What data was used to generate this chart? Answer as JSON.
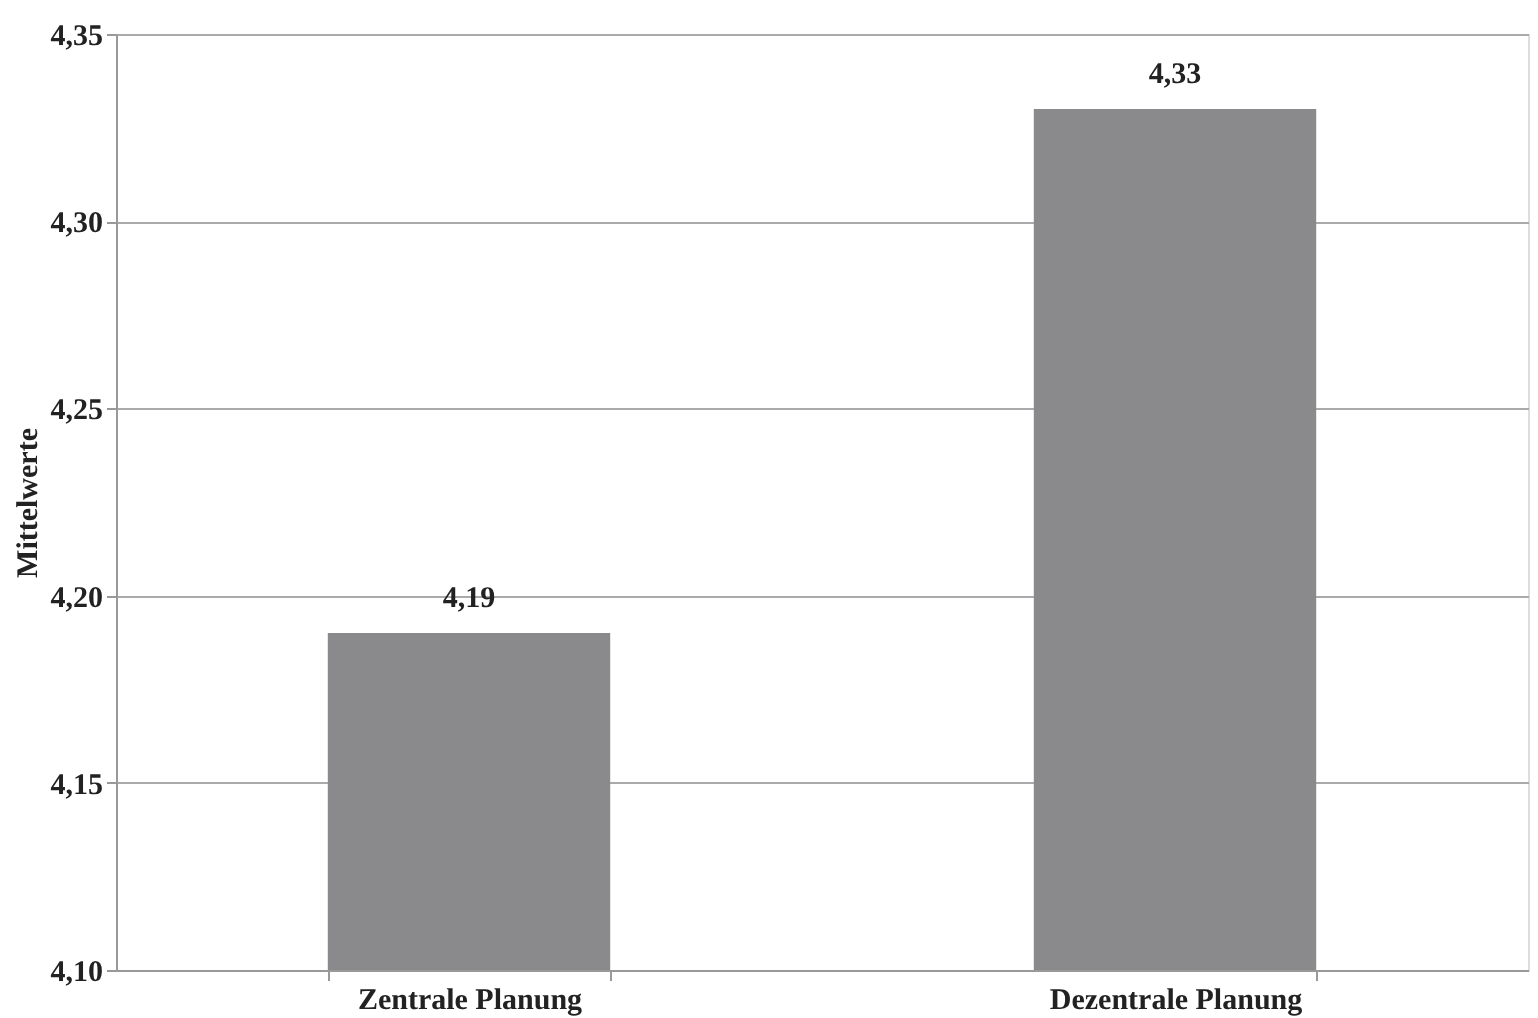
{
  "chart_data": {
    "type": "bar",
    "ylabel": "Mittelwerte",
    "categories": [
      "Zentrale Planung",
      "Dezentrale Planung"
    ],
    "series": [
      {
        "color": "#8a8a8d",
        "values": [
          4.19,
          4.33
        ]
      }
    ],
    "value_labels": [
      "4,19",
      "4,33"
    ],
    "ylim": [
      4.1,
      4.35
    ],
    "yticks": [
      {
        "value": 4.1,
        "label": "4,10"
      },
      {
        "value": 4.15,
        "label": "4,15"
      },
      {
        "value": 4.2,
        "label": "4,20"
      },
      {
        "value": 4.25,
        "label": "4,25"
      },
      {
        "value": 4.3,
        "label": "4,30"
      },
      {
        "value": 4.35,
        "label": "4,35"
      }
    ],
    "grid": "y"
  }
}
